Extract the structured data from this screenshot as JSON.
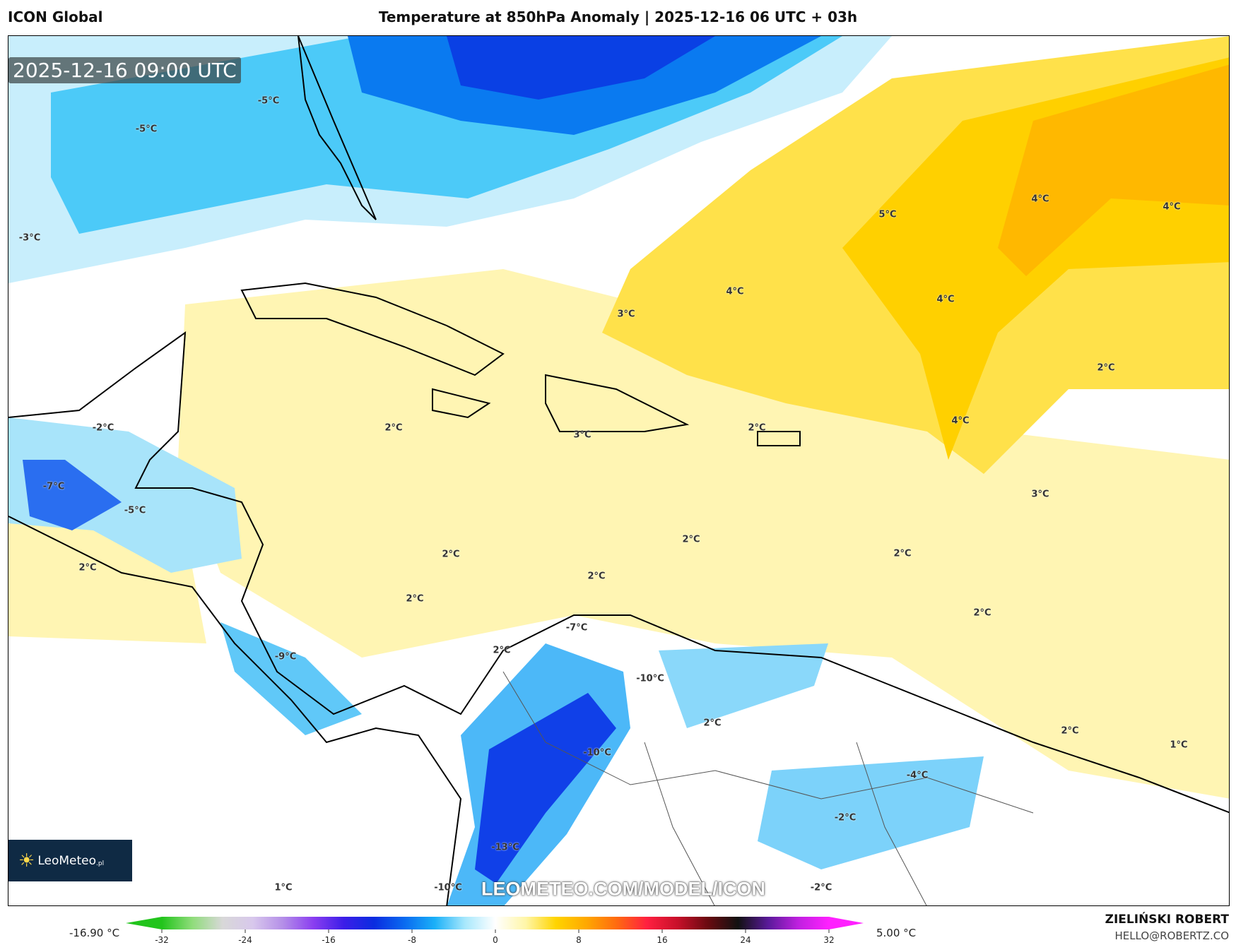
{
  "header": {
    "model": "ICON Global",
    "title": "Temperature at 850hPa Anomaly | 2025-12-16 06 UTC + 03h"
  },
  "map": {
    "valid_time": "2025-12-16 09:00 UTC",
    "watermark": "LEOMETEO.COM/MODEL/ICON",
    "logo": {
      "text": "LeoMeteo",
      "suffix": ".pl"
    },
    "contour_labels": [
      "-5°C",
      "-5°C",
      "-3°C",
      "-2°C",
      "-7°C",
      "-5°C",
      "2°C",
      "2°C",
      "3°C",
      "3°C",
      "4°C",
      "5°C",
      "4°C",
      "4°C",
      "4°C",
      "2°C",
      "4°C",
      "2°C",
      "3°C",
      "2°C",
      "2°C",
      "2°C",
      "2°C",
      "2°C",
      "2°C",
      "-7°C",
      "2°C",
      "-9°C",
      "-10°C",
      "2°C",
      "2°C",
      "1°C",
      "-10°C",
      "-4°C",
      "-2°C",
      "-13°C",
      "1°C",
      "-10°C",
      "-2°C"
    ]
  },
  "colorbar": {
    "min_label": "-16.90 °C",
    "max_label": "5.00 °C",
    "ticks": [
      "-32",
      "-24",
      "-16",
      "-8",
      "0",
      "8",
      "16",
      "24",
      "32"
    ],
    "range": [
      -32,
      32
    ],
    "colors": [
      "#22c41c",
      "#8fdc7a",
      "#d8d8d8",
      "#d8c8ec",
      "#b48ee8",
      "#8a3ef0",
      "#3c1ee8",
      "#0a2ce0",
      "#0a6af0",
      "#1ab0f8",
      "#a8e8fc",
      "#ffffff",
      "#fff6a8",
      "#ffd400",
      "#ffa800",
      "#ff6a10",
      "#ff2040",
      "#c8102a",
      "#6a0a10",
      "#111111",
      "#5a1a9a",
      "#c020e0",
      "#ff20ff"
    ]
  },
  "credits": {
    "author": "ZIELIŃSKI ROBERT",
    "email": "HELLO@ROBERTZ.CO"
  },
  "colors": {
    "cold_strong": "#0a2ce0",
    "cold": "#1ab0f8",
    "cool": "#c8eefc",
    "warm_light": "#fff5b3",
    "warm": "#ffd400",
    "warm_strong": "#ffb800"
  }
}
